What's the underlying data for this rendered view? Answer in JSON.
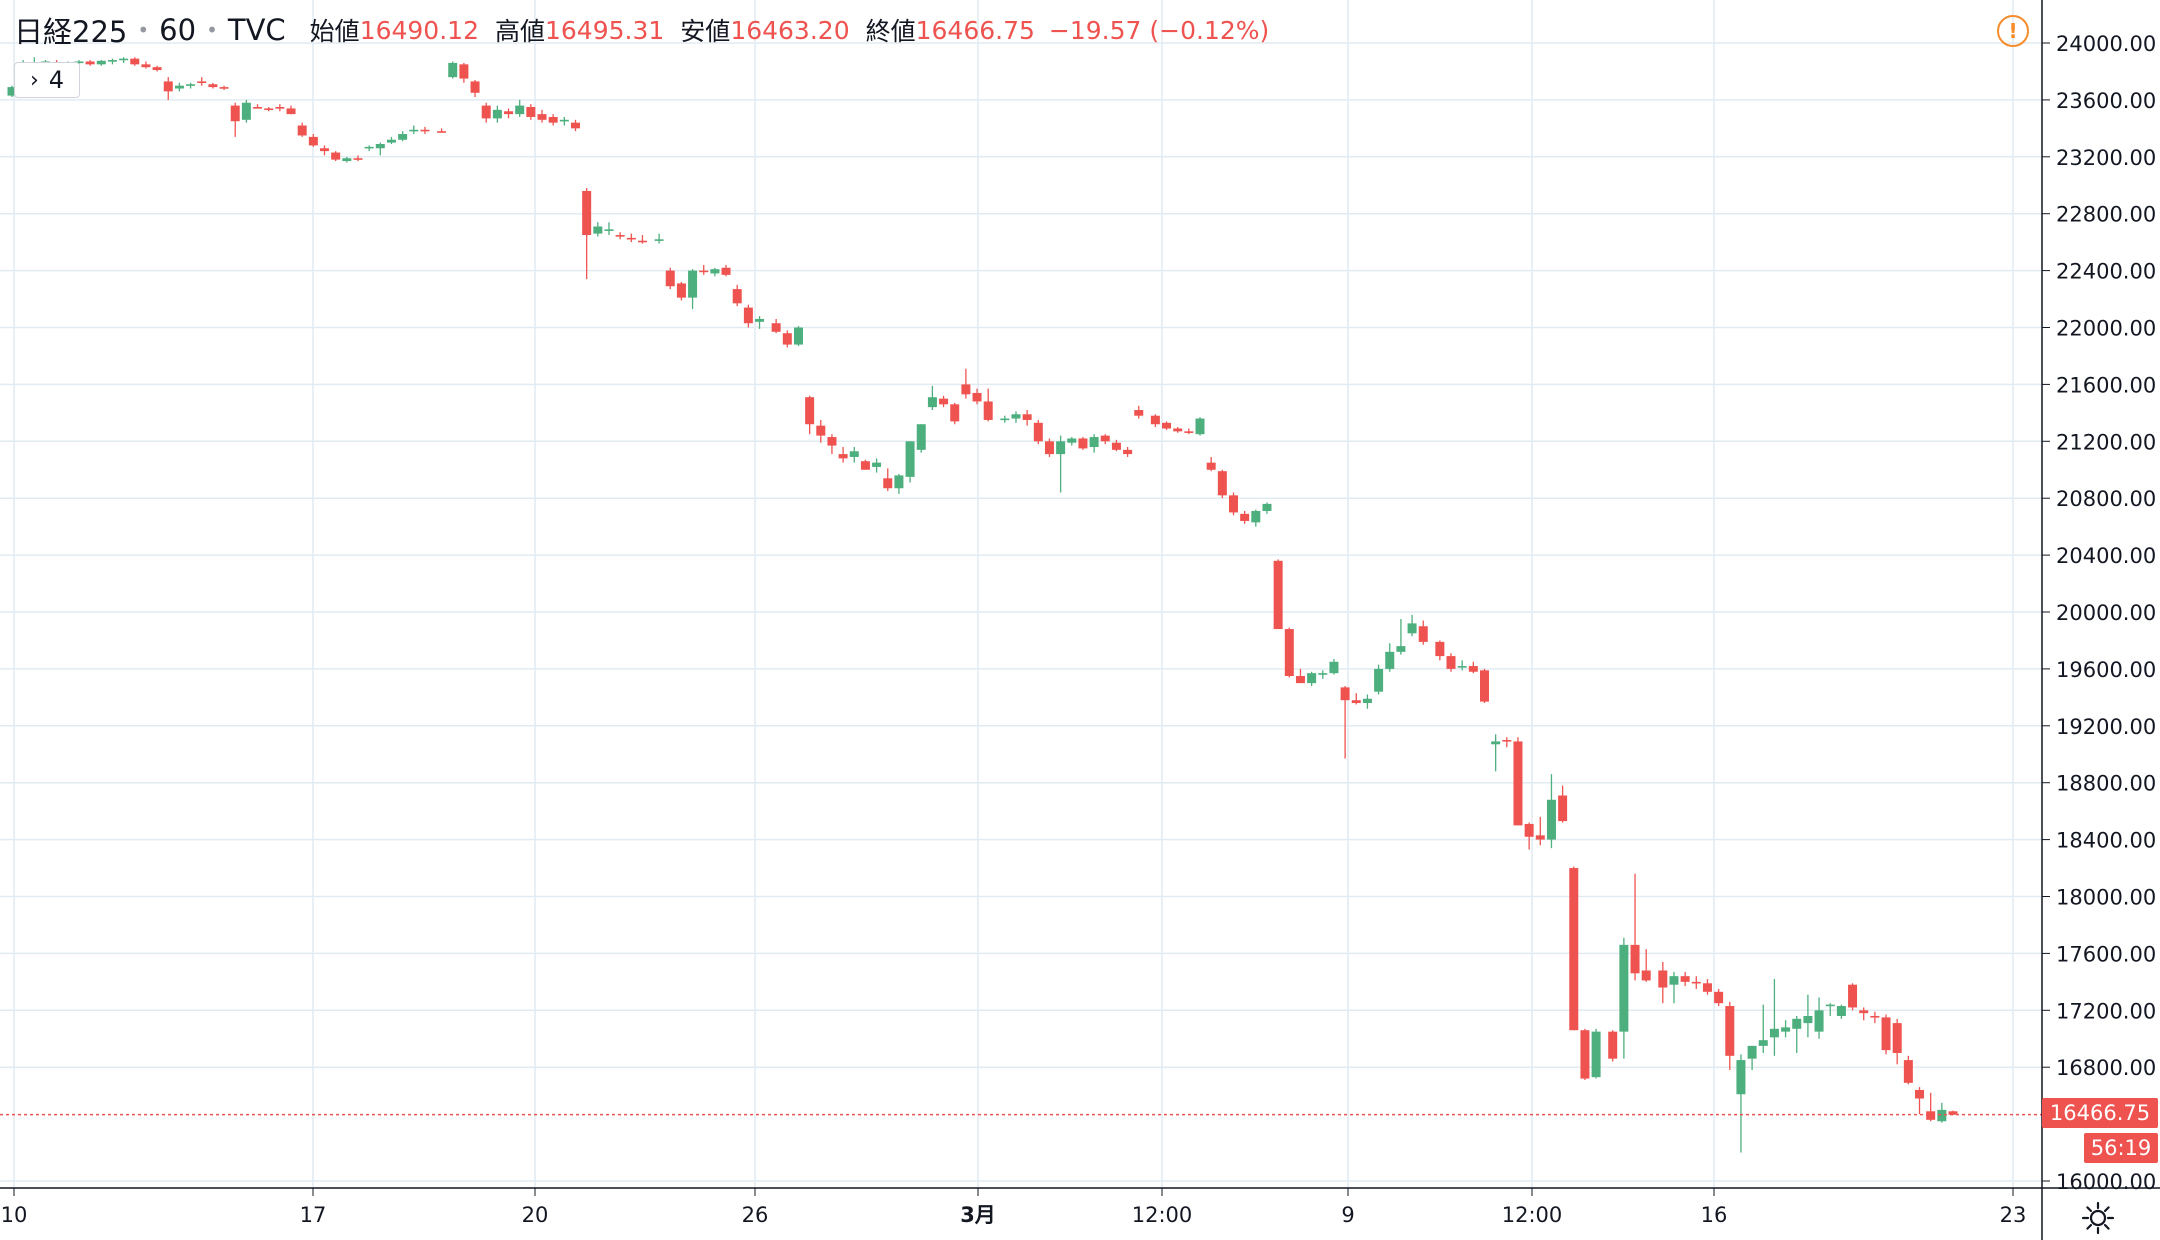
{
  "header": {
    "symbol": "日経225",
    "interval": "60",
    "source": "TVC",
    "open_label": "始値",
    "open": "16490.12",
    "high_label": "高値",
    "high": "16495.31",
    "low_label": "安値",
    "low": "16463.20",
    "close_label": "終値",
    "close": "16466.75",
    "change": "−19.57 (−0.12%)",
    "indicator_count": "4"
  },
  "price_tag": "16466.75",
  "countdown": "56:19",
  "colors": {
    "up": "#4caf7d",
    "down": "#ef5350",
    "grid": "#e1ecf2",
    "axis_text": "#131722",
    "warning": "#f68c2b"
  },
  "icons": [
    "chevron-right-icon",
    "warning-icon",
    "settings-gear-icon"
  ],
  "chart_data": {
    "type": "candlestick",
    "title": "",
    "xlabel": "",
    "ylabel": "",
    "ylim": [
      15950,
      24250
    ],
    "y_ticks": [
      "24000.00",
      "23600.00",
      "23200.00",
      "22800.00",
      "22400.00",
      "22000.00",
      "21600.00",
      "21200.00",
      "20800.00",
      "20400.00",
      "20000.00",
      "19600.00",
      "19200.00",
      "18800.00",
      "18400.00",
      "18000.00",
      "17600.00",
      "17200.00",
      "16800.00",
      "16000.00"
    ],
    "x_ticks": [
      "10",
      "17",
      "20",
      "26",
      "3月",
      "12:00",
      "9",
      "12:00",
      "16",
      "23"
    ],
    "last_price": 16466.75,
    "gap_after_bars": [
      37,
      56,
      66,
      86,
      99,
      124,
      139,
      143
    ],
    "bars": [
      [
        23630,
        23700,
        23620,
        23690
      ],
      [
        23690,
        23880,
        23680,
        23860
      ],
      [
        23850,
        23900,
        23800,
        23860
      ],
      [
        23860,
        23880,
        23840,
        23870
      ],
      [
        23860,
        23880,
        23840,
        23840
      ],
      [
        23840,
        23870,
        23830,
        23865
      ],
      [
        23860,
        23880,
        23850,
        23870
      ],
      [
        23870,
        23880,
        23840,
        23850
      ],
      [
        23850,
        23880,
        23840,
        23875
      ],
      [
        23870,
        23890,
        23850,
        23880
      ],
      [
        23880,
        23900,
        23860,
        23890
      ],
      [
        23890,
        23900,
        23840,
        23850
      ],
      [
        23850,
        23870,
        23820,
        23830
      ],
      [
        23830,
        23840,
        23800,
        23810
      ],
      [
        23730,
        23760,
        23600,
        23660
      ],
      [
        23680,
        23720,
        23660,
        23700
      ],
      [
        23700,
        23720,
        23680,
        23710
      ],
      [
        23730,
        23760,
        23700,
        23720
      ],
      [
        23710,
        23720,
        23680,
        23690
      ],
      [
        23690,
        23700,
        23670,
        23680
      ],
      [
        23560,
        23580,
        23340,
        23450
      ],
      [
        23460,
        23600,
        23440,
        23580
      ],
      [
        23550,
        23570,
        23540,
        23545
      ],
      [
        23540,
        23550,
        23520,
        23530
      ],
      [
        23550,
        23570,
        23520,
        23540
      ],
      [
        23540,
        23560,
        23500,
        23500
      ],
      [
        23420,
        23440,
        23340,
        23350
      ],
      [
        23340,
        23360,
        23270,
        23280
      ],
      [
        23260,
        23280,
        23210,
        23240
      ],
      [
        23230,
        23240,
        23170,
        23180
      ],
      [
        23170,
        23200,
        23160,
        23190
      ],
      [
        23190,
        23210,
        23170,
        23180
      ],
      [
        23260,
        23280,
        23240,
        23270
      ],
      [
        23260,
        23300,
        23210,
        23290
      ],
      [
        23300,
        23340,
        23290,
        23320
      ],
      [
        23320,
        23380,
        23310,
        23360
      ],
      [
        23380,
        23420,
        23360,
        23390
      ],
      [
        23390,
        23410,
        23360,
        23380
      ],
      [
        23380,
        23400,
        23370,
        23370
      ],
      [
        23760,
        23870,
        23750,
        23860
      ],
      [
        23850,
        23860,
        23720,
        23750
      ],
      [
        23730,
        23740,
        23620,
        23650
      ],
      [
        23560,
        23580,
        23440,
        23470
      ],
      [
        23470,
        23560,
        23440,
        23530
      ],
      [
        23520,
        23540,
        23470,
        23500
      ],
      [
        23500,
        23600,
        23480,
        23560
      ],
      [
        23550,
        23570,
        23460,
        23480
      ],
      [
        23500,
        23530,
        23440,
        23460
      ],
      [
        23480,
        23500,
        23420,
        23440
      ],
      [
        23450,
        23480,
        23420,
        23460
      ],
      [
        23440,
        23460,
        23380,
        23400
      ],
      [
        22960,
        22980,
        22340,
        22650
      ],
      [
        22660,
        22740,
        22640,
        22710
      ],
      [
        22690,
        22740,
        22650,
        22690
      ],
      [
        22650,
        22670,
        22620,
        22640
      ],
      [
        22630,
        22660,
        22600,
        22620
      ],
      [
        22610,
        22650,
        22590,
        22600
      ],
      [
        22610,
        22660,
        22590,
        22620
      ],
      [
        22400,
        22420,
        22270,
        22290
      ],
      [
        22310,
        22320,
        22190,
        22210
      ],
      [
        22210,
        22410,
        22130,
        22400
      ],
      [
        22400,
        22440,
        22370,
        22390
      ],
      [
        22380,
        22420,
        22360,
        22410
      ],
      [
        22420,
        22440,
        22360,
        22370
      ],
      [
        22270,
        22300,
        22150,
        22170
      ],
      [
        22140,
        22160,
        22000,
        22030
      ],
      [
        22040,
        22080,
        21990,
        22060
      ],
      [
        22030,
        22060,
        21960,
        21970
      ],
      [
        21960,
        21980,
        21860,
        21880
      ],
      [
        21880,
        22010,
        21870,
        22000
      ],
      [
        21510,
        21520,
        21250,
        21320
      ],
      [
        21310,
        21350,
        21190,
        21240
      ],
      [
        21230,
        21250,
        21110,
        21170
      ],
      [
        21110,
        21160,
        21050,
        21080
      ],
      [
        21090,
        21160,
        21050,
        21130
      ],
      [
        21060,
        21070,
        21000,
        21000
      ],
      [
        21020,
        21080,
        20980,
        21050
      ],
      [
        20940,
        21010,
        20850,
        20870
      ],
      [
        20870,
        20970,
        20830,
        20960
      ],
      [
        20950,
        21200,
        20910,
        21200
      ],
      [
        21140,
        21320,
        21120,
        21320
      ],
      [
        21440,
        21590,
        21420,
        21510
      ],
      [
        21500,
        21520,
        21440,
        21460
      ],
      [
        21460,
        21470,
        21320,
        21340
      ],
      [
        21600,
        21710,
        21500,
        21530
      ],
      [
        21540,
        21570,
        21460,
        21480
      ],
      [
        21480,
        21570,
        21340,
        21350
      ],
      [
        21350,
        21380,
        21330,
        21360
      ],
      [
        21360,
        21410,
        21330,
        21390
      ],
      [
        21390,
        21420,
        21310,
        21350
      ],
      [
        21330,
        21350,
        21180,
        21200
      ],
      [
        21200,
        21220,
        21090,
        21110
      ],
      [
        21110,
        21240,
        20840,
        21200
      ],
      [
        21190,
        21230,
        21170,
        21220
      ],
      [
        21220,
        21230,
        21140,
        21150
      ],
      [
        21160,
        21250,
        21120,
        21230
      ],
      [
        21240,
        21250,
        21180,
        21200
      ],
      [
        21190,
        21210,
        21130,
        21140
      ],
      [
        21140,
        21160,
        21090,
        21110
      ],
      [
        21420,
        21450,
        21360,
        21380
      ],
      [
        21380,
        21390,
        21300,
        21320
      ],
      [
        21330,
        21340,
        21280,
        21290
      ],
      [
        21290,
        21300,
        21260,
        21270
      ],
      [
        21270,
        21290,
        21250,
        21260
      ],
      [
        21250,
        21370,
        21240,
        21360
      ],
      [
        21050,
        21090,
        20990,
        21000
      ],
      [
        20990,
        21000,
        20800,
        20820
      ],
      [
        20820,
        20840,
        20680,
        20700
      ],
      [
        20690,
        20710,
        20620,
        20640
      ],
      [
        20630,
        20720,
        20600,
        20710
      ],
      [
        20710,
        20770,
        20690,
        20760
      ],
      [
        20360,
        20370,
        19890,
        19880
      ],
      [
        19880,
        19890,
        19540,
        19550
      ],
      [
        19550,
        19600,
        19500,
        19500
      ],
      [
        19500,
        19580,
        19480,
        19570
      ],
      [
        19560,
        19590,
        19530,
        19570
      ],
      [
        19570,
        19670,
        19560,
        19650
      ],
      [
        19470,
        19480,
        18970,
        19380
      ],
      [
        19380,
        19430,
        19350,
        19360
      ],
      [
        19360,
        19420,
        19320,
        19390
      ],
      [
        19440,
        19630,
        19420,
        19600
      ],
      [
        19600,
        19780,
        19580,
        19720
      ],
      [
        19720,
        19950,
        19700,
        19760
      ],
      [
        19850,
        19980,
        19830,
        19920
      ],
      [
        19900,
        19940,
        19770,
        19790
      ],
      [
        19790,
        19800,
        19660,
        19690
      ],
      [
        19690,
        19710,
        19580,
        19600
      ],
      [
        19610,
        19660,
        19590,
        19620
      ],
      [
        19620,
        19650,
        19570,
        19580
      ],
      [
        19590,
        19600,
        19360,
        19370
      ],
      [
        19070,
        19140,
        18880,
        19090
      ],
      [
        19100,
        19120,
        19050,
        19090
      ],
      [
        19090,
        19120,
        18500,
        18500
      ],
      [
        18510,
        18520,
        18330,
        18420
      ],
      [
        18430,
        18560,
        18360,
        18400
      ],
      [
        18400,
        18860,
        18340,
        18680
      ],
      [
        18710,
        18780,
        18520,
        18530
      ],
      [
        18200,
        18210,
        17060,
        17060
      ],
      [
        17060,
        17070,
        16710,
        16720
      ],
      [
        16730,
        17070,
        16720,
        17050
      ],
      [
        17050,
        17060,
        16840,
        16860
      ],
      [
        17050,
        17710,
        16860,
        17660
      ],
      [
        17660,
        18160,
        17410,
        17460
      ],
      [
        17480,
        17630,
        17400,
        17410
      ],
      [
        17480,
        17540,
        17250,
        17360
      ],
      [
        17380,
        17470,
        17250,
        17440
      ],
      [
        17440,
        17470,
        17370,
        17400
      ],
      [
        17400,
        17440,
        17350,
        17390
      ],
      [
        17390,
        17420,
        17310,
        17330
      ],
      [
        17330,
        17350,
        17230,
        17250
      ],
      [
        17230,
        17260,
        16780,
        16880
      ],
      [
        16610,
        16890,
        16200,
        16850
      ],
      [
        16860,
        16950,
        16780,
        16950
      ],
      [
        16950,
        17240,
        16900,
        16990
      ],
      [
        17010,
        17420,
        16880,
        17070
      ],
      [
        17050,
        17130,
        17010,
        17080
      ],
      [
        17070,
        17160,
        16900,
        17140
      ],
      [
        17110,
        17310,
        17010,
        17160
      ],
      [
        17050,
        17290,
        17000,
        17200
      ],
      [
        17230,
        17250,
        17160,
        17240
      ],
      [
        17160,
        17240,
        17140,
        17230
      ],
      [
        17380,
        17390,
        17200,
        17220
      ],
      [
        17200,
        17220,
        17130,
        17180
      ],
      [
        17160,
        17190,
        17110,
        17150
      ],
      [
        17150,
        17170,
        16890,
        16920
      ],
      [
        17110,
        17140,
        16820,
        16900
      ],
      [
        16850,
        16880,
        16680,
        16690
      ],
      [
        16640,
        16660,
        16470,
        16580
      ],
      [
        16490,
        16620,
        16420,
        16430
      ],
      [
        16420,
        16550,
        16410,
        16500
      ],
      [
        16490,
        16495,
        16463,
        16466
      ]
    ]
  }
}
